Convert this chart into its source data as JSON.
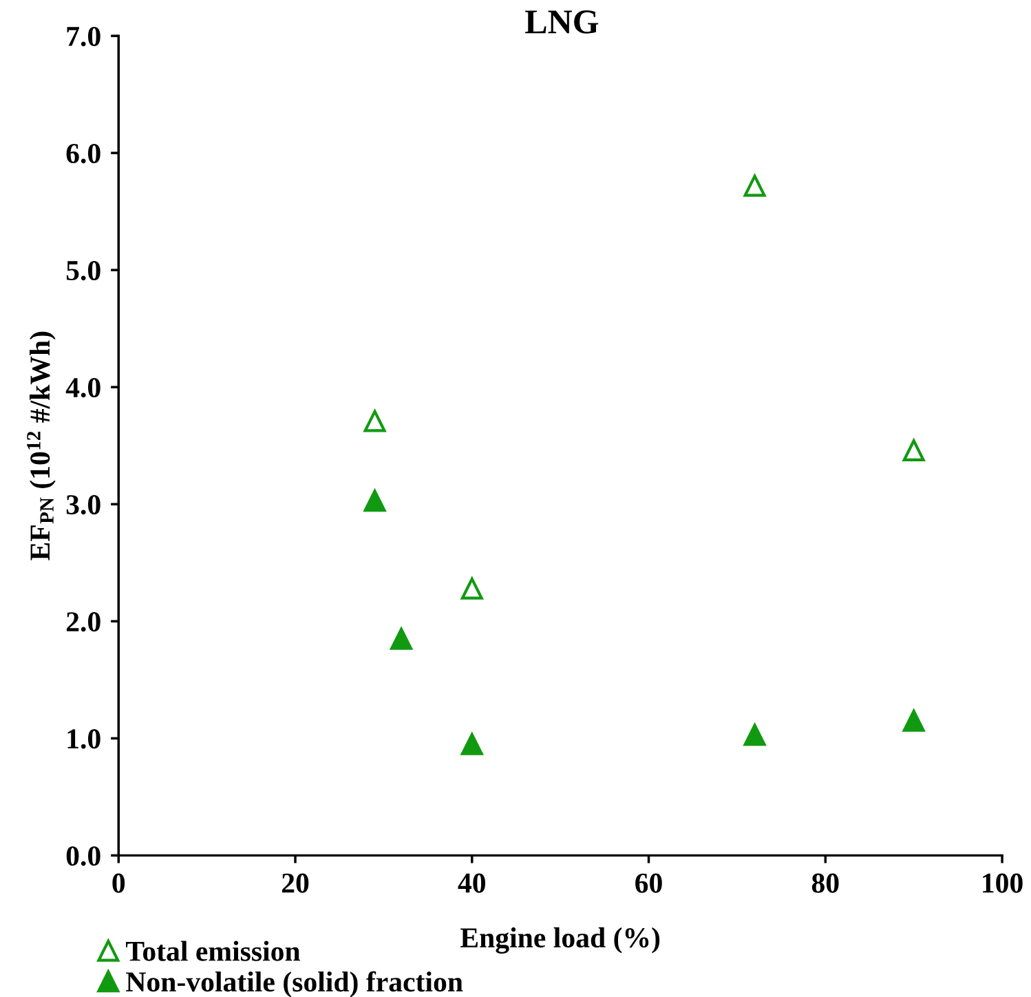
{
  "chart_data": {
    "type": "scatter",
    "title": "LNG",
    "xlabel": "Engine load (%)",
    "ylabel": "EF$_{PN}$ (10$^{12}$ #/kWh)",
    "xlim": [
      0,
      100
    ],
    "xticks": [
      0,
      20,
      40,
      60,
      80,
      100
    ],
    "ylim": [
      0,
      7
    ],
    "yticks": [
      {
        "value": 0,
        "label": "0.0"
      },
      {
        "value": 1,
        "label": "1.0"
      },
      {
        "value": 2,
        "label": "2.0"
      },
      {
        "value": 3,
        "label": "3.0"
      },
      {
        "value": 4,
        "label": "4.0"
      },
      {
        "value": 5,
        "label": "5.0"
      },
      {
        "value": 6,
        "label": "6.0"
      },
      {
        "value": 7,
        "label": "7.0"
      }
    ],
    "marker": "triangle",
    "grid": false,
    "legend": "bottom left",
    "series": [
      {
        "name": "Total emission",
        "color": "#119a11",
        "x": [
          29,
          40,
          72,
          90
        ],
        "values": [
          3.71,
          2.28,
          5.72,
          3.46
        ]
      },
      {
        "name": "Non-volatile (solid) fraction",
        "color": "#119a11",
        "x": [
          29,
          32,
          40,
          72,
          90
        ],
        "values": [
          3.03,
          1.85,
          0.95,
          1.03,
          1.15
        ]
      }
    ]
  }
}
